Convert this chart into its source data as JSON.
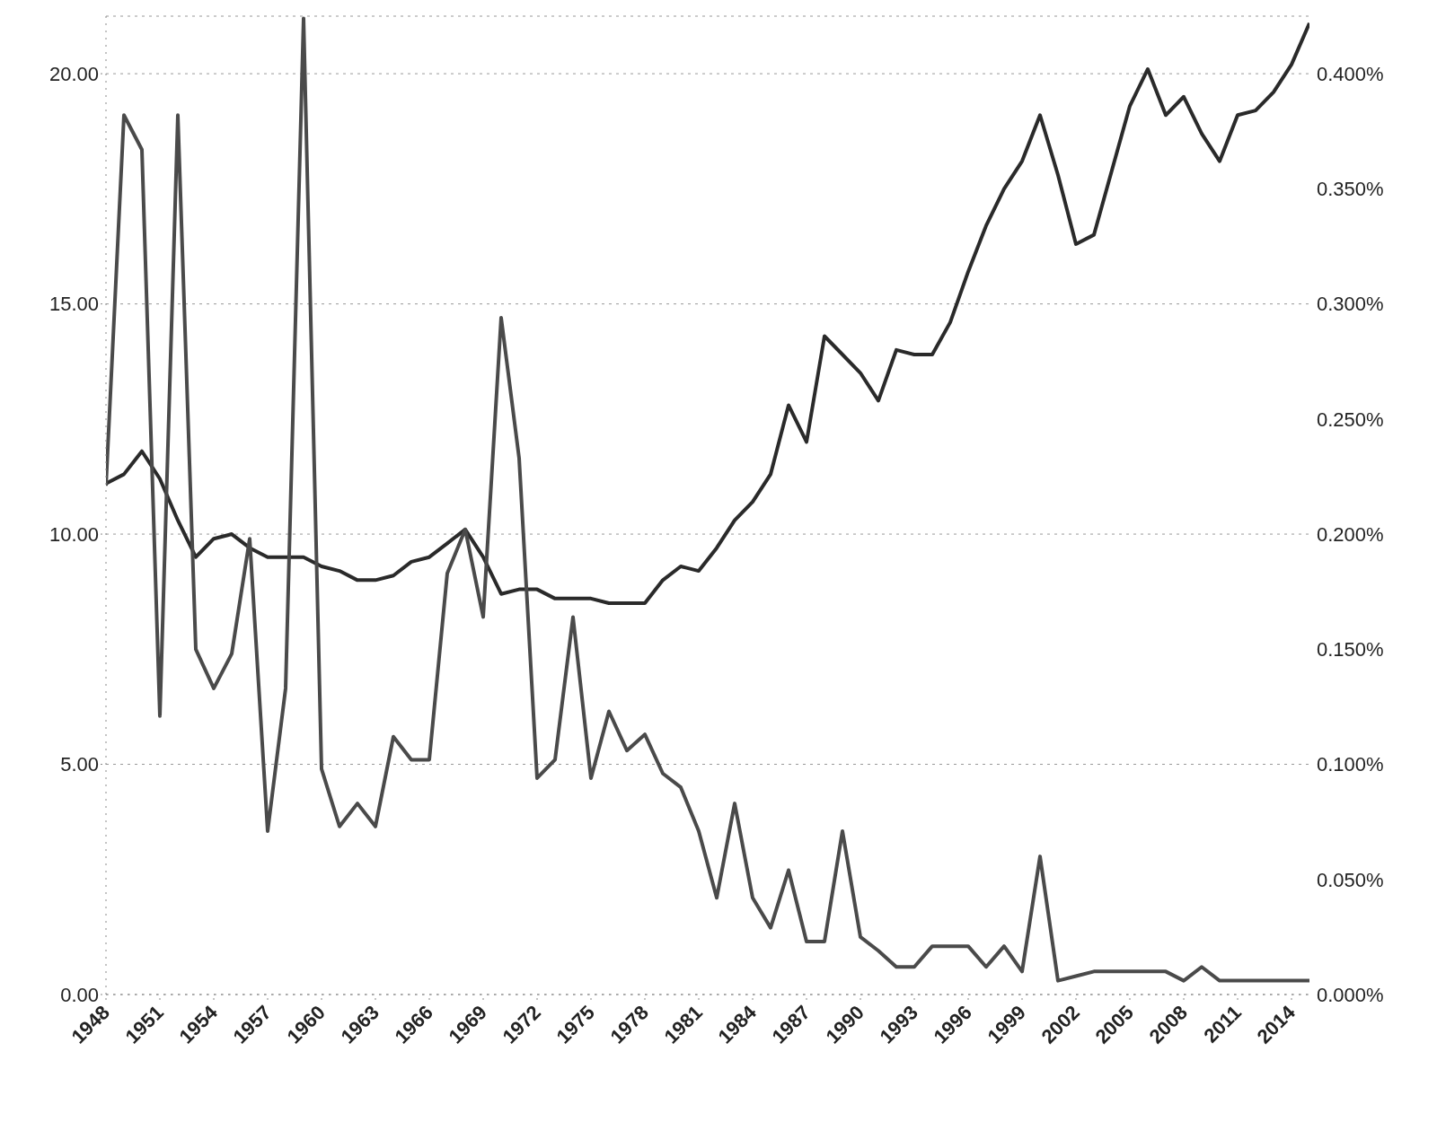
{
  "chart_data": {
    "type": "line",
    "x": [
      1948,
      1949,
      1950,
      1951,
      1952,
      1953,
      1954,
      1955,
      1956,
      1957,
      1958,
      1959,
      1960,
      1961,
      1962,
      1963,
      1964,
      1965,
      1966,
      1967,
      1968,
      1969,
      1970,
      1971,
      1972,
      1973,
      1974,
      1975,
      1976,
      1977,
      1978,
      1979,
      1980,
      1981,
      1982,
      1983,
      1984,
      1985,
      1986,
      1987,
      1988,
      1989,
      1990,
      1991,
      1992,
      1993,
      1994,
      1995,
      1996,
      1997,
      1998,
      1999,
      2000,
      2001,
      2002,
      2003,
      2004,
      2005,
      2006,
      2007,
      2008,
      2009,
      2010,
      2011,
      2012,
      2013,
      2014,
      2015
    ],
    "series": [
      {
        "color": "#2a2a2a",
        "values": [
          11.1,
          11.3,
          11.8,
          11.2,
          10.3,
          9.5,
          9.9,
          10.0,
          9.7,
          9.5,
          9.5,
          9.5,
          9.3,
          9.2,
          9.0,
          9.0,
          9.1,
          9.4,
          9.5,
          9.8,
          10.1,
          9.5,
          8.7,
          8.8,
          8.8,
          8.6,
          8.6,
          8.6,
          8.5,
          8.5,
          8.5,
          9.0,
          9.3,
          9.2,
          9.7,
          10.3,
          10.7,
          11.3,
          12.8,
          12.0,
          14.3,
          13.9,
          13.5,
          12.9,
          14.0,
          13.9,
          13.9,
          14.6,
          15.7,
          16.7,
          17.5,
          18.1,
          19.1,
          17.8,
          16.3,
          16.5,
          17.9,
          19.3,
          20.1,
          19.1,
          19.5,
          18.7,
          18.1,
          19.1,
          19.2,
          19.6,
          20.2,
          21.1
        ]
      },
      {
        "color": "#4a4a4a",
        "axis": "y2",
        "values": [
          0.221,
          0.382,
          0.367,
          0.121,
          0.382,
          0.15,
          0.133,
          0.148,
          0.198,
          0.071,
          0.133,
          0.424,
          0.098,
          0.073,
          0.083,
          0.073,
          0.112,
          0.102,
          0.102,
          0.183,
          0.202,
          0.164,
          0.294,
          0.233,
          0.094,
          0.102,
          0.164,
          0.094,
          0.123,
          0.106,
          0.113,
          0.096,
          0.09,
          0.071,
          0.042,
          0.083,
          0.042,
          0.029,
          0.054,
          0.023,
          0.023,
          0.071,
          0.025,
          0.019,
          0.012,
          0.012,
          0.021,
          0.021,
          0.021,
          0.012,
          0.021,
          0.01,
          0.06,
          0.006,
          0.008,
          0.01,
          0.01,
          0.01,
          0.01,
          0.01,
          0.006,
          0.012,
          0.006,
          0.006,
          0.006,
          0.006,
          0.006,
          0.006
        ]
      }
    ],
    "xlim": [
      1948,
      2015
    ],
    "xticks": [
      1948,
      1951,
      1954,
      1957,
      1960,
      1963,
      1966,
      1969,
      1972,
      1975,
      1978,
      1981,
      1984,
      1987,
      1990,
      1993,
      1996,
      1999,
      2002,
      2005,
      2008,
      2011,
      2014
    ],
    "ylim": [
      0,
      21.25
    ],
    "yticks": [
      {
        "value": 0,
        "label": "0.00"
      },
      {
        "value": 5,
        "label": "5.00"
      },
      {
        "value": 10,
        "label": "10.00"
      },
      {
        "value": 15,
        "label": "15.00"
      },
      {
        "value": 20,
        "label": "20.00"
      }
    ],
    "y2lim": [
      0,
      0.425
    ],
    "y2ticks": [
      {
        "value": 0,
        "label": "0.000%"
      },
      {
        "value": 0.05,
        "label": "0.050%"
      },
      {
        "value": 0.1,
        "label": "0.100%"
      },
      {
        "value": 0.15,
        "label": "0.150%"
      },
      {
        "value": 0.2,
        "label": "0.200%"
      },
      {
        "value": 0.25,
        "label": "0.250%"
      },
      {
        "value": 0.3,
        "label": "0.300%"
      },
      {
        "value": 0.35,
        "label": "0.350%"
      },
      {
        "value": 0.4,
        "label": "0.400%"
      }
    ],
    "grid": "y",
    "line_style": "solid",
    "marker": "none"
  }
}
